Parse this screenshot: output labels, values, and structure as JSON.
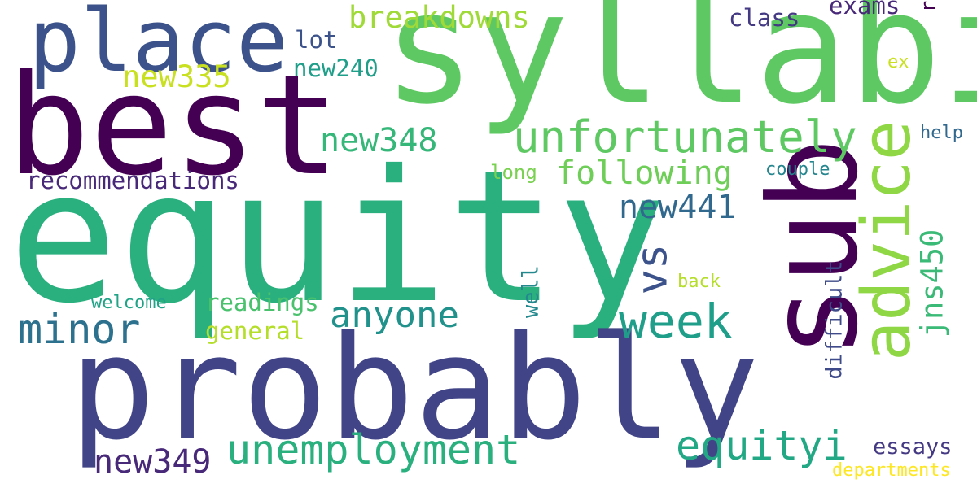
{
  "words": {
    "equity": {
      "text": "equity",
      "color": "#2ab07f"
    },
    "syllabi": {
      "text": "syllabi",
      "color": "#5ec962"
    },
    "probably": {
      "text": "probably",
      "color": "#414487"
    },
    "best": {
      "text": "best",
      "color": "#440154"
    },
    "sub": {
      "text": "sub",
      "color": "#440154"
    },
    "place": {
      "text": "place",
      "color": "#3b528b"
    },
    "advice": {
      "text": "advice",
      "color": "#8fd744"
    },
    "unfortunately": {
      "text": "unfortunately",
      "color": "#5ec962"
    },
    "unemployment": {
      "text": "unemployment",
      "color": "#2ab07f"
    },
    "equityi": {
      "text": "equityi",
      "color": "#22a884"
    },
    "week": {
      "text": "week",
      "color": "#1f9e89"
    },
    "minor": {
      "text": "minor",
      "color": "#2c728e"
    },
    "anyone": {
      "text": "anyone",
      "color": "#21918c"
    },
    "following": {
      "text": "following",
      "color": "#6ece58"
    },
    "breakdowns": {
      "text": "breakdowns",
      "color": "#a0da39"
    },
    "new348": {
      "text": "new348",
      "color": "#35b779"
    },
    "new441": {
      "text": "new441",
      "color": "#31688e"
    },
    "new349": {
      "text": "new349",
      "color": "#482878"
    },
    "new335": {
      "text": "new335",
      "color": "#c8e020"
    },
    "vs": {
      "text": "vs",
      "color": "#3b528b"
    },
    "jns450": {
      "text": "jns450",
      "color": "#3aba76"
    },
    "recommendations": {
      "text": "recommendations",
      "color": "#482878"
    },
    "readings": {
      "text": "readings",
      "color": "#4ac16d"
    },
    "general": {
      "text": "general",
      "color": "#b5de2b"
    },
    "lot": {
      "text": "lot",
      "color": "#3b528b"
    },
    "new240": {
      "text": "new240",
      "color": "#1f9e89"
    },
    "class": {
      "text": "class",
      "color": "#443983"
    },
    "exams": {
      "text": "exams",
      "color": "#482878"
    },
    "long": {
      "text": "long",
      "color": "#7ad151"
    },
    "couple": {
      "text": "couple",
      "color": "#25858e"
    },
    "help": {
      "text": "help",
      "color": "#31688e"
    },
    "ex": {
      "text": "ex",
      "color": "#c8e020"
    },
    "essays": {
      "text": "essays",
      "color": "#443983"
    },
    "departments": {
      "text": "departments",
      "color": "#fde725"
    },
    "welcome": {
      "text": "welcome",
      "color": "#20a386"
    },
    "back": {
      "text": "back",
      "color": "#b5de2b"
    },
    "well": {
      "text": "well",
      "color": "#23898e"
    },
    "difficult": {
      "text": "difficult",
      "color": "#3e4a89"
    },
    "r1": {
      "text": "r",
      "color": "#440154"
    }
  }
}
